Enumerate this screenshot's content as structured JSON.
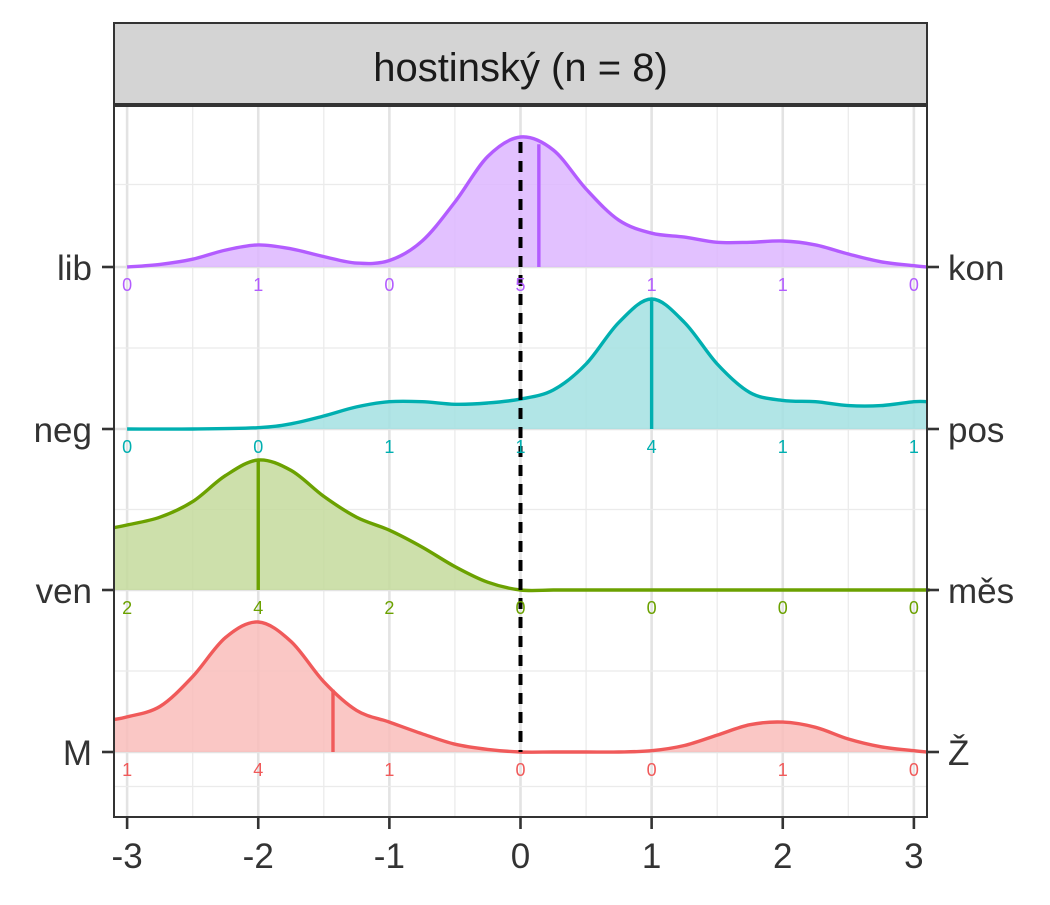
{
  "chart_data": {
    "type": "ridgeline-density",
    "title": "hostinský (n = 8)",
    "xlim": [
      -3.1,
      3.1
    ],
    "x_ticks": [
      -3,
      -2,
      -1,
      0,
      1,
      2,
      3
    ],
    "x_tick_labels": [
      "-3",
      "-2",
      "-1",
      "0",
      "1",
      "2",
      "3"
    ],
    "reference_line": {
      "x": 0,
      "style": "dashed",
      "color": "#000000"
    },
    "grid": true,
    "count_positions": [
      -3,
      -2,
      -1,
      0,
      1,
      2,
      3
    ],
    "series": [
      {
        "left_label": "lib",
        "right_label": "kon",
        "color": "#B35CFF",
        "fill": "#DDB6FF",
        "mean": 0.14,
        "counts": [
          0,
          1,
          0,
          5,
          1,
          1,
          0
        ],
        "density": {
          "x": [
            -3.0,
            -2.75,
            -2.5,
            -2.25,
            -2.0,
            -1.75,
            -1.5,
            -1.25,
            -1.0,
            -0.75,
            -0.5,
            -0.25,
            0.0,
            0.25,
            0.5,
            0.75,
            1.0,
            1.25,
            1.5,
            1.75,
            2.0,
            2.25,
            2.5,
            2.75,
            3.0,
            3.1
          ],
          "y": [
            0.0,
            0.02,
            0.06,
            0.13,
            0.17,
            0.14,
            0.08,
            0.03,
            0.05,
            0.2,
            0.5,
            0.85,
            1.0,
            0.9,
            0.6,
            0.36,
            0.26,
            0.23,
            0.19,
            0.19,
            0.2,
            0.17,
            0.1,
            0.04,
            0.01,
            0.0
          ]
        }
      },
      {
        "left_label": "neg",
        "right_label": "pos",
        "color": "#00AFB0",
        "fill": "#A3E1E2",
        "mean": 1.0,
        "counts": [
          0,
          0,
          1,
          1,
          4,
          1,
          1
        ],
        "density": {
          "x": [
            -3.0,
            -2.5,
            -2.0,
            -1.75,
            -1.5,
            -1.25,
            -1.0,
            -0.75,
            -0.5,
            -0.25,
            0.0,
            0.25,
            0.5,
            0.75,
            1.0,
            1.25,
            1.5,
            1.75,
            2.0,
            2.25,
            2.5,
            2.75,
            3.0,
            3.1
          ],
          "y": [
            0.0,
            0.0,
            0.01,
            0.04,
            0.1,
            0.17,
            0.21,
            0.21,
            0.19,
            0.2,
            0.23,
            0.3,
            0.5,
            0.82,
            1.0,
            0.82,
            0.5,
            0.28,
            0.22,
            0.21,
            0.18,
            0.18,
            0.21,
            0.21
          ]
        }
      },
      {
        "left_label": "ven",
        "right_label": "měs",
        "color": "#6BA100",
        "fill": "#C4DA9C",
        "mean": -2.0,
        "counts": [
          2,
          4,
          2,
          0,
          0,
          0,
          0
        ],
        "density": {
          "x": [
            -3.1,
            -3.0,
            -2.75,
            -2.5,
            -2.25,
            -2.0,
            -1.75,
            -1.5,
            -1.25,
            -1.0,
            -0.75,
            -0.5,
            -0.25,
            0.0,
            0.25,
            0.5,
            1.0,
            2.0,
            3.0,
            3.1
          ],
          "y": [
            0.48,
            0.5,
            0.56,
            0.68,
            0.88,
            1.0,
            0.92,
            0.72,
            0.56,
            0.46,
            0.33,
            0.18,
            0.06,
            0.0,
            0.0,
            0.0,
            0.0,
            0.0,
            0.0,
            0.0
          ]
        }
      },
      {
        "left_label": "M",
        "right_label": "Ž",
        "color": "#F05A5A",
        "fill": "#F9BDBB",
        "mean": -1.43,
        "counts": [
          1,
          4,
          1,
          0,
          0,
          1,
          0
        ],
        "density": {
          "x": [
            -3.1,
            -3.0,
            -2.75,
            -2.5,
            -2.25,
            -2.0,
            -1.75,
            -1.5,
            -1.25,
            -1.0,
            -0.75,
            -0.5,
            -0.25,
            0.0,
            0.25,
            0.5,
            0.75,
            1.0,
            1.25,
            1.5,
            1.75,
            2.0,
            2.25,
            2.5,
            2.75,
            3.0,
            3.1
          ],
          "y": [
            0.25,
            0.27,
            0.35,
            0.58,
            0.88,
            1.0,
            0.85,
            0.54,
            0.32,
            0.23,
            0.14,
            0.06,
            0.02,
            0.0,
            0.0,
            0.0,
            0.0,
            0.01,
            0.05,
            0.13,
            0.21,
            0.23,
            0.19,
            0.1,
            0.04,
            0.01,
            0.0
          ]
        }
      }
    ]
  }
}
